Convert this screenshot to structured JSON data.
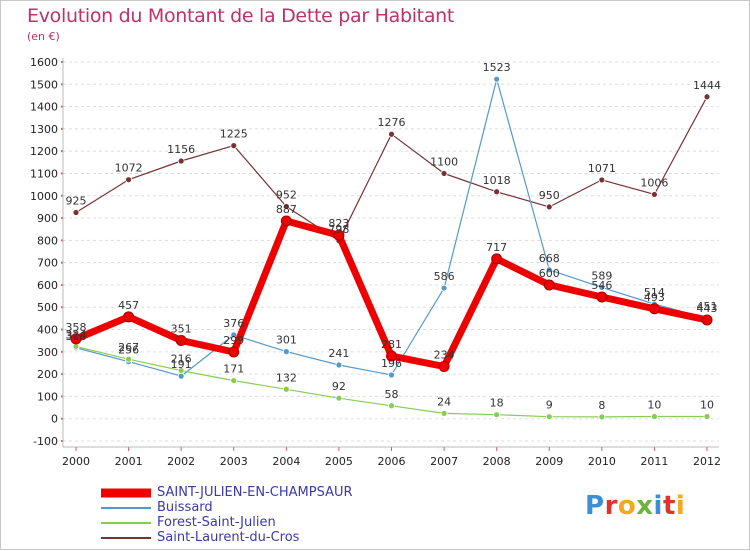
{
  "header": {
    "title": "Evolution du Montant de la Dette par Habitant",
    "unit": "(en €)"
  },
  "logo": {
    "text": "Proxiti",
    "colors": [
      "#3b8ed8",
      "#e2332b",
      "#f3a81d",
      "#6fb33c",
      "#3b8ed8",
      "#e2332b",
      "#f3a81d"
    ]
  },
  "chart_data": {
    "type": "line",
    "title": "Evolution du Montant de la Dette par Habitant",
    "subtitle": "(en €)",
    "xlabel": "",
    "ylabel": "",
    "x": [
      "2000",
      "2001",
      "2002",
      "2003",
      "2004",
      "2005",
      "2006",
      "2007",
      "2008",
      "2009",
      "2010",
      "2011",
      "2012"
    ],
    "ylim": [
      -100,
      1600
    ],
    "yticks": [
      -100,
      0,
      100,
      200,
      300,
      400,
      500,
      600,
      700,
      800,
      900,
      1000,
      1100,
      1200,
      1300,
      1400,
      1500,
      1600
    ],
    "grid": "horizontal-dashed",
    "legend_position": "bottom-left",
    "series": [
      {
        "name": "SAINT-JULIEN-EN-CHAMPSAUR",
        "color": "#ee0000",
        "values": [
          358,
          457,
          351,
          299,
          887,
          823,
          281,
          234,
          717,
          600,
          546,
          493,
          443
        ]
      },
      {
        "name": "Buissard",
        "color": "#5599cc",
        "values": [
          318,
          256,
          191,
          376,
          301,
          241,
          196,
          586,
          1523,
          668,
          589,
          514,
          451
        ]
      },
      {
        "name": "Forest-Saint-Julien",
        "color": "#88cc55",
        "values": [
          324,
          267,
          216,
          171,
          132,
          92,
          58,
          24,
          18,
          9,
          8,
          10,
          10
        ]
      },
      {
        "name": "Saint-Laurent-du-Cros",
        "color": "#773333",
        "values": [
          925,
          1072,
          1156,
          1225,
          952,
          798,
          1276,
          1100,
          1018,
          950,
          1071,
          1006,
          1444
        ]
      }
    ]
  }
}
